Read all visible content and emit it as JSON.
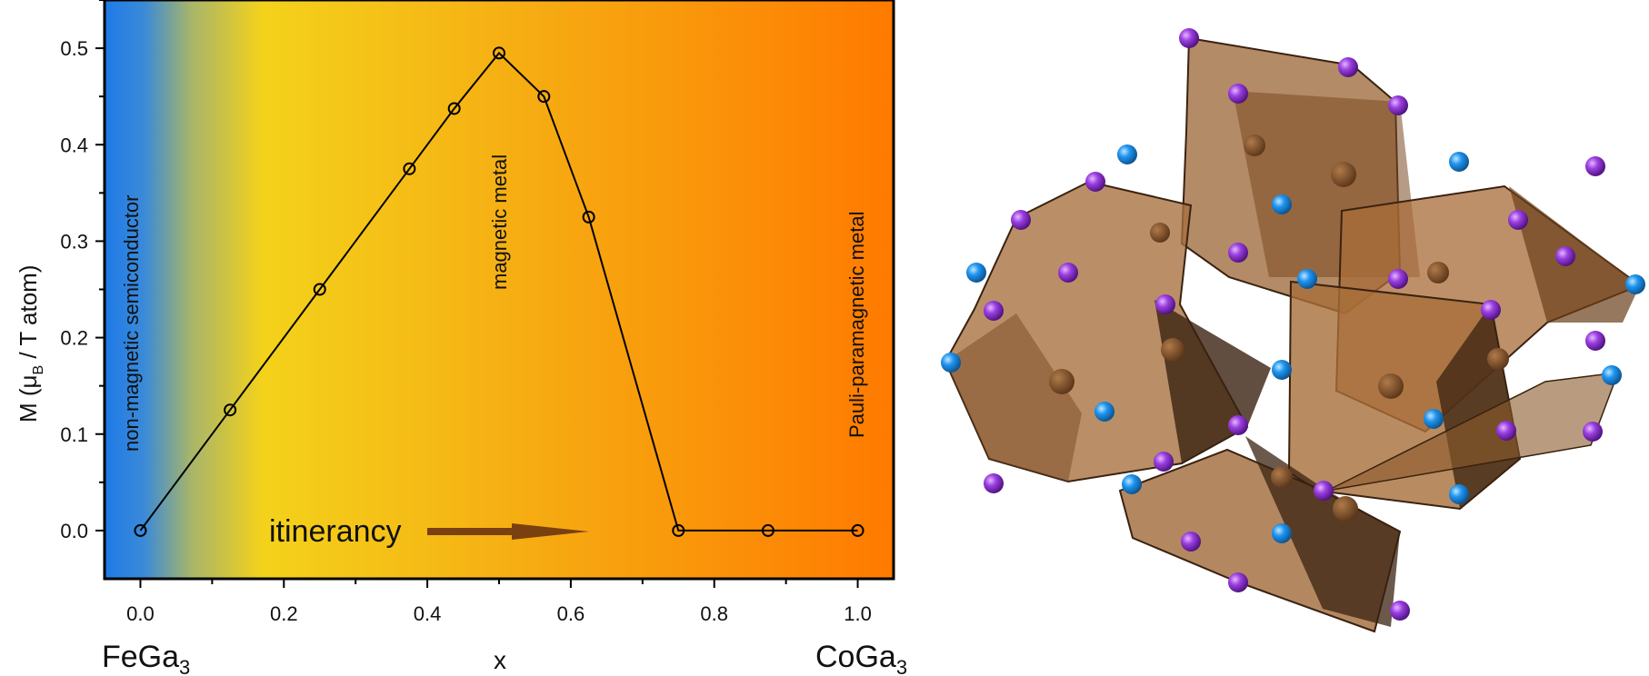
{
  "chart_data": {
    "type": "line",
    "x": [
      0.0,
      0.125,
      0.25,
      0.375,
      0.4375,
      0.5,
      0.5625,
      0.625,
      0.75,
      0.875,
      1.0
    ],
    "y": [
      0.0,
      0.125,
      0.25,
      0.375,
      0.4375,
      0.495,
      0.45,
      0.325,
      0.0,
      0.0,
      0.0
    ],
    "xlim": [
      -0.05,
      1.05
    ],
    "ylim": [
      -0.05,
      0.55
    ],
    "xticks": [
      "0.0",
      "0.2",
      "0.4",
      "0.6",
      "0.8",
      "1.0"
    ],
    "yticks": [
      "0.0",
      "0.1",
      "0.2",
      "0.3",
      "0.4",
      "0.5"
    ],
    "xlabel": "x",
    "ylabel": {
      "main": "M (μ",
      "sub": "B",
      "rest": " / T atom)"
    },
    "x_end_labels": {
      "left": {
        "main": "FeGa",
        "sub": "3"
      },
      "right": {
        "main": "CoGa",
        "sub": "3"
      }
    },
    "regions": {
      "left": "non-magnetic semiconductor",
      "middle": "magnetic metal",
      "right": "Pauli-paramagnetic metal"
    },
    "annotation": "itinerancy",
    "grid": false,
    "background_gradient": [
      "#1e7ee6",
      "#f5d21a",
      "#ff7a00"
    ],
    "marker": "open-circle"
  },
  "structure": {
    "atom_colors": {
      "corner_purple": "#8a2be2",
      "corner_blue": "#1e90ff"
    },
    "polyhedron_color": "#b0753f"
  }
}
